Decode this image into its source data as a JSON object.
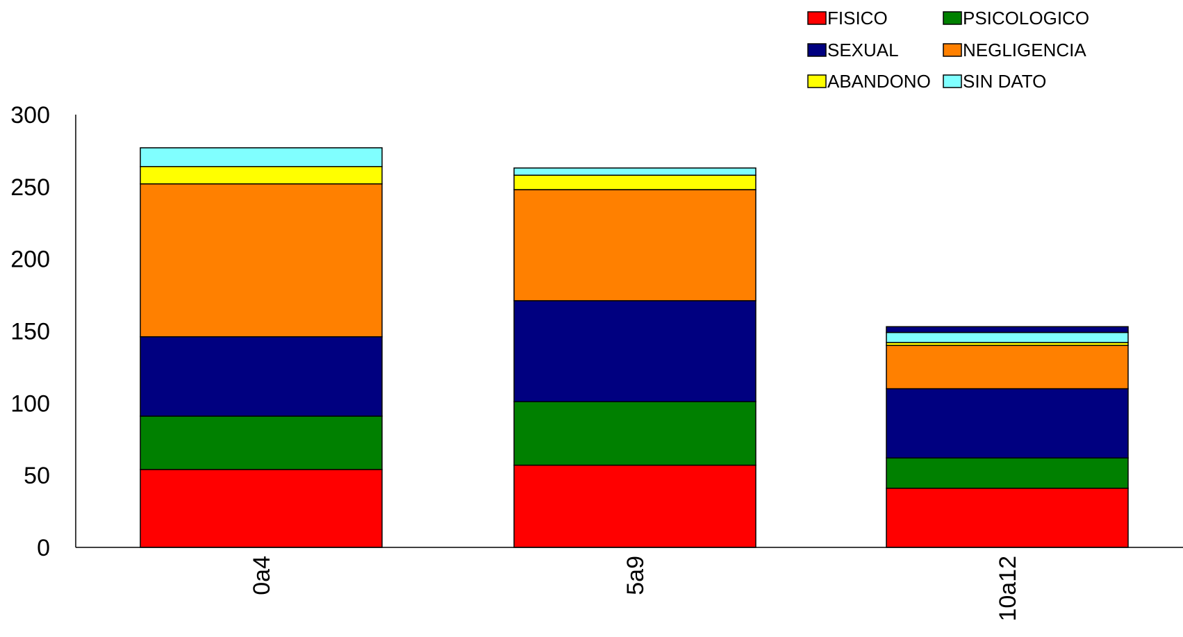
{
  "chart_data": {
    "type": "bar",
    "stacked": true,
    "categories": [
      "0a4",
      "5a9",
      "10a12"
    ],
    "series": [
      {
        "name": "FISICO",
        "color": "#FF0000",
        "values": [
          54,
          57,
          41
        ]
      },
      {
        "name": "PSICOLOGICO",
        "color": "#008000",
        "values": [
          37,
          44,
          21
        ]
      },
      {
        "name": "SEXUAL",
        "color": "#000080",
        "values": [
          55,
          70,
          48
        ]
      },
      {
        "name": "NEGLIGENCIA",
        "color": "#FF8000",
        "values": [
          106,
          77,
          30
        ]
      },
      {
        "name": "ABANDONO",
        "color": "#FFFF00",
        "values": [
          12,
          10,
          2
        ]
      },
      {
        "name": "SIN DATO",
        "color": "#80FFFF",
        "values": [
          13,
          5,
          7
        ]
      },
      {
        "name": "",
        "color": "#000080",
        "values": [
          0,
          0,
          4
        ]
      }
    ],
    "ylim": [
      0,
      300
    ],
    "yticks": [
      0,
      50,
      100,
      150,
      200,
      250,
      300
    ],
    "xlabel": "",
    "ylabel": "",
    "title": "",
    "grid": false,
    "legend_position": "top-right"
  }
}
